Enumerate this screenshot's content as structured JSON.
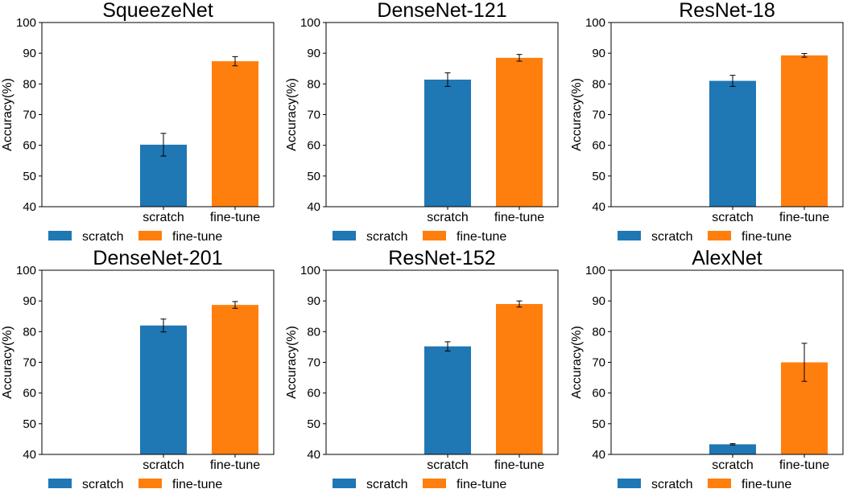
{
  "chart_data": [
    {
      "type": "bar",
      "title": "SqueezeNet",
      "ylabel": "Accuracy(%)",
      "xlabel": "",
      "ylim": [
        40,
        100
      ],
      "yticks": [
        "40",
        "50",
        "60",
        "70",
        "80",
        "90",
        "100"
      ],
      "categories": [
        "scratch",
        "fine-tune"
      ],
      "values": [
        60.2,
        87.4
      ],
      "errors": [
        3.7,
        1.5
      ],
      "colors": [
        "#1f77b4",
        "#ff7f0e"
      ],
      "legend": [
        "scratch",
        "fine-tune"
      ],
      "legend_position": "bottom"
    },
    {
      "type": "bar",
      "title": "DenseNet-121",
      "ylabel": "Accuracy(%)",
      "xlabel": "",
      "ylim": [
        40,
        100
      ],
      "yticks": [
        "40",
        "50",
        "60",
        "70",
        "80",
        "90",
        "100"
      ],
      "categories": [
        "scratch",
        "fine-tune"
      ],
      "values": [
        81.4,
        88.5
      ],
      "errors": [
        2.2,
        1.1
      ],
      "colors": [
        "#1f77b4",
        "#ff7f0e"
      ],
      "legend": [
        "scratch",
        "fine-tune"
      ],
      "legend_position": "bottom"
    },
    {
      "type": "bar",
      "title": "ResNet-18",
      "ylabel": "Accuracy(%)",
      "xlabel": "",
      "ylim": [
        40,
        100
      ],
      "yticks": [
        "40",
        "50",
        "60",
        "70",
        "80",
        "90",
        "100"
      ],
      "categories": [
        "scratch",
        "fine-tune"
      ],
      "values": [
        81.0,
        89.3
      ],
      "errors": [
        1.8,
        0.6
      ],
      "colors": [
        "#1f77b4",
        "#ff7f0e"
      ],
      "legend": [
        "scratch",
        "fine-tune"
      ],
      "legend_position": "bottom"
    },
    {
      "type": "bar",
      "title": "DenseNet-201",
      "ylabel": "Accuracy(%)",
      "xlabel": "",
      "ylim": [
        40,
        100
      ],
      "yticks": [
        "40",
        "50",
        "60",
        "70",
        "80",
        "90",
        "100"
      ],
      "categories": [
        "scratch",
        "fine-tune"
      ],
      "values": [
        82.0,
        88.7
      ],
      "errors": [
        2.1,
        1.1
      ],
      "colors": [
        "#1f77b4",
        "#ff7f0e"
      ],
      "legend": [
        "scratch",
        "fine-tune"
      ],
      "legend_position": "bottom"
    },
    {
      "type": "bar",
      "title": "ResNet-152",
      "ylabel": "Accuracy(%)",
      "xlabel": "",
      "ylim": [
        40,
        100
      ],
      "yticks": [
        "40",
        "50",
        "60",
        "70",
        "80",
        "90",
        "100"
      ],
      "categories": [
        "scratch",
        "fine-tune"
      ],
      "values": [
        75.2,
        89.0
      ],
      "errors": [
        1.5,
        1.0
      ],
      "colors": [
        "#1f77b4",
        "#ff7f0e"
      ],
      "legend": [
        "scratch",
        "fine-tune"
      ],
      "legend_position": "bottom"
    },
    {
      "type": "bar",
      "title": "AlexNet",
      "ylabel": "Accuracy(%)",
      "xlabel": "",
      "ylim": [
        40,
        100
      ],
      "yticks": [
        "40",
        "50",
        "60",
        "70",
        "80",
        "90",
        "100"
      ],
      "categories": [
        "scratch",
        "fine-tune"
      ],
      "values": [
        43.3,
        70.0
      ],
      "errors": [
        0.2,
        6.2
      ],
      "colors": [
        "#1f77b4",
        "#ff7f0e"
      ],
      "legend": [
        "scratch",
        "fine-tune"
      ],
      "legend_position": "bottom"
    }
  ]
}
